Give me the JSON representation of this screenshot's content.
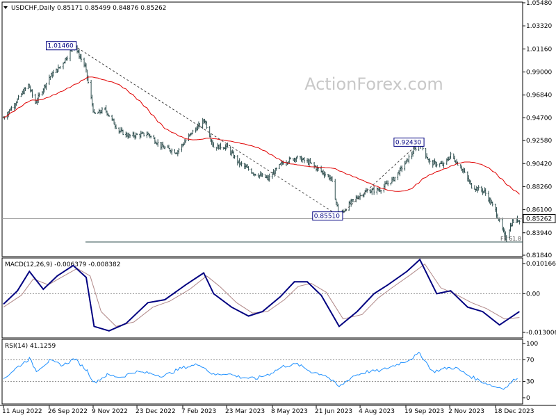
{
  "chart_data": [
    {
      "type": "candlestick",
      "title": "USDCHF,Daily",
      "ohlc": {
        "open": "0.85171",
        "high": "0.85499",
        "low": "0.84876",
        "close": "0.85262"
      },
      "watermark": "ActionForex.com",
      "y_ticks": [
        "1.05480",
        "1.03320",
        "1.01160",
        "0.99000",
        "0.96840",
        "0.94700",
        "0.92580",
        "0.90420",
        "0.88260",
        "0.86100",
        "0.83940",
        "0.81840"
      ],
      "ylim": [
        0.8184,
        1.0548
      ],
      "current_price": "0.85262",
      "annotations": [
        {
          "label": "1.01460",
          "value": 1.0146,
          "date": "2022-10-21"
        },
        {
          "label": "0.85510",
          "value": 0.8551,
          "date": "2023-07-14"
        },
        {
          "label": "0.92430",
          "value": 0.9243,
          "date": "2023-10-03"
        },
        {
          "label": "FE 61.8",
          "value": 0.8308
        }
      ],
      "moving_average": {
        "color": "#e00000"
      },
      "price_anchors": [
        [
          "2022-08-11",
          0.947
        ],
        [
          "2022-08-22",
          0.96
        ],
        [
          "2022-09-05",
          0.978
        ],
        [
          "2022-09-12",
          0.961
        ],
        [
          "2022-09-26",
          0.985
        ],
        [
          "2022-10-07",
          0.995
        ],
        [
          "2022-10-21",
          1.0146
        ],
        [
          "2022-11-01",
          0.995
        ],
        [
          "2022-11-10",
          0.95
        ],
        [
          "2022-11-21",
          0.955
        ],
        [
          "2022-12-05",
          0.935
        ],
        [
          "2022-12-15",
          0.93
        ],
        [
          "2023-01-03",
          0.932
        ],
        [
          "2023-01-17",
          0.92
        ],
        [
          "2023-02-01",
          0.915
        ],
        [
          "2023-02-16",
          0.933
        ],
        [
          "2023-03-01",
          0.945
        ],
        [
          "2023-03-10",
          0.92
        ],
        [
          "2023-03-23",
          0.92
        ],
        [
          "2023-04-04",
          0.905
        ],
        [
          "2023-04-20",
          0.895
        ],
        [
          "2023-05-04",
          0.89
        ],
        [
          "2023-05-18",
          0.905
        ],
        [
          "2023-06-01",
          0.91
        ],
        [
          "2023-06-14",
          0.905
        ],
        [
          "2023-06-26",
          0.897
        ],
        [
          "2023-07-06",
          0.89
        ],
        [
          "2023-07-14",
          0.8551
        ],
        [
          "2023-07-28",
          0.87
        ],
        [
          "2023-08-10",
          0.878
        ],
        [
          "2023-08-24",
          0.88
        ],
        [
          "2023-09-07",
          0.89
        ],
        [
          "2023-09-21",
          0.908
        ],
        [
          "2023-10-03",
          0.9243
        ],
        [
          "2023-10-13",
          0.905
        ],
        [
          "2023-10-27",
          0.903
        ],
        [
          "2023-11-03",
          0.912
        ],
        [
          "2023-11-14",
          0.9
        ],
        [
          "2023-11-24",
          0.883
        ],
        [
          "2023-12-07",
          0.878
        ],
        [
          "2023-12-18",
          0.86
        ],
        [
          "2023-12-28",
          0.8345
        ],
        [
          "2024-01-04",
          0.85
        ],
        [
          "2024-01-11",
          0.852
        ]
      ]
    },
    {
      "type": "line",
      "title": "MACD(12,26,9)",
      "values_text": "-0.006379 -0.008382",
      "y_ticks": [
        "0.010166",
        "0.00",
        "-0.013006"
      ],
      "ylim": [
        -0.013006,
        0.010166
      ],
      "series": [
        {
          "color": "#000080",
          "points": [
            [
              "2022-08-11",
              -0.0035
            ],
            [
              "2022-08-25",
              0.001
            ],
            [
              "2022-09-06",
              0.0075
            ],
            [
              "2022-09-20",
              0.0015
            ],
            [
              "2022-10-04",
              0.006
            ],
            [
              "2022-10-20",
              0.0095
            ],
            [
              "2022-11-02",
              0.0055
            ],
            [
              "2022-11-10",
              -0.011
            ],
            [
              "2022-11-25",
              -0.0125
            ],
            [
              "2022-12-12",
              -0.01
            ],
            [
              "2023-01-03",
              -0.003
            ],
            [
              "2023-01-20",
              -0.002
            ],
            [
              "2023-02-10",
              0.003
            ],
            [
              "2023-02-28",
              0.007
            ],
            [
              "2023-03-10",
              0.0
            ],
            [
              "2023-03-28",
              -0.0045
            ],
            [
              "2023-04-14",
              -0.0075
            ],
            [
              "2023-04-28",
              -0.006
            ],
            [
              "2023-05-16",
              -0.001
            ],
            [
              "2023-05-30",
              0.004
            ],
            [
              "2023-06-12",
              0.004
            ],
            [
              "2023-06-26",
              -0.0005
            ],
            [
              "2023-07-14",
              -0.011
            ],
            [
              "2023-08-01",
              -0.006
            ],
            [
              "2023-08-18",
              0.0
            ],
            [
              "2023-09-01",
              0.003
            ],
            [
              "2023-09-20",
              0.0075
            ],
            [
              "2023-10-03",
              0.0115
            ],
            [
              "2023-10-20",
              0.0
            ],
            [
              "2023-11-03",
              0.001
            ],
            [
              "2023-11-20",
              -0.0045
            ],
            [
              "2023-12-05",
              -0.006
            ],
            [
              "2023-12-22",
              -0.0105
            ],
            [
              "2024-01-11",
              -0.006
            ]
          ]
        },
        {
          "color": "#b08888",
          "points": [
            [
              "2022-08-11",
              -0.0045
            ],
            [
              "2022-08-29",
              -0.0005
            ],
            [
              "2022-09-10",
              0.005
            ],
            [
              "2022-09-25",
              0.003
            ],
            [
              "2022-10-08",
              0.0055
            ],
            [
              "2022-10-24",
              0.0085
            ],
            [
              "2022-11-06",
              0.006
            ],
            [
              "2022-11-17",
              -0.006
            ],
            [
              "2022-12-02",
              -0.011
            ],
            [
              "2022-12-20",
              -0.0095
            ],
            [
              "2023-01-08",
              -0.0045
            ],
            [
              "2023-01-25",
              -0.0025
            ],
            [
              "2023-02-14",
              0.0015
            ],
            [
              "2023-03-03",
              0.006
            ],
            [
              "2023-03-16",
              0.0025
            ],
            [
              "2023-04-02",
              -0.003
            ],
            [
              "2023-04-18",
              -0.0065
            ],
            [
              "2023-05-03",
              -0.006
            ],
            [
              "2023-05-20",
              -0.002
            ],
            [
              "2023-06-03",
              0.0025
            ],
            [
              "2023-06-16",
              0.0035
            ],
            [
              "2023-07-01",
              0.0005
            ],
            [
              "2023-07-18",
              -0.0085
            ],
            [
              "2023-08-06",
              -0.007
            ],
            [
              "2023-08-22",
              -0.0015
            ],
            [
              "2023-09-05",
              0.002
            ],
            [
              "2023-09-24",
              0.0065
            ],
            [
              "2023-10-08",
              0.01
            ],
            [
              "2023-10-24",
              0.002
            ],
            [
              "2023-11-07",
              0.0
            ],
            [
              "2023-11-24",
              -0.003
            ],
            [
              "2023-12-09",
              -0.005
            ],
            [
              "2023-12-27",
              -0.0085
            ],
            [
              "2024-01-11",
              -0.008
            ]
          ]
        }
      ]
    },
    {
      "type": "line",
      "title": "RSI(14)",
      "values_text": "41.1259",
      "y_ticks": [
        "100",
        "70",
        "30",
        "0"
      ],
      "ylim": [
        0,
        100
      ],
      "series": [
        {
          "color": "#1e90ff",
          "points": [
            [
              "2022-08-11",
              35
            ],
            [
              "2022-08-24",
              55
            ],
            [
              "2022-09-06",
              72
            ],
            [
              "2022-09-13",
              50
            ],
            [
              "2022-09-26",
              68
            ],
            [
              "2022-10-10",
              60
            ],
            [
              "2022-10-21",
              72
            ],
            [
              "2022-11-03",
              50
            ],
            [
              "2022-11-10",
              28
            ],
            [
              "2022-11-23",
              42
            ],
            [
              "2022-12-07",
              38
            ],
            [
              "2022-12-21",
              48
            ],
            [
              "2023-01-05",
              45
            ],
            [
              "2023-01-19",
              40
            ],
            [
              "2023-02-06",
              55
            ],
            [
              "2023-02-24",
              62
            ],
            [
              "2023-03-10",
              42
            ],
            [
              "2023-03-23",
              45
            ],
            [
              "2023-04-06",
              38
            ],
            [
              "2023-04-21",
              35
            ],
            [
              "2023-05-05",
              44
            ],
            [
              "2023-05-19",
              58
            ],
            [
              "2023-06-02",
              62
            ],
            [
              "2023-06-16",
              48
            ],
            [
              "2023-06-30",
              42
            ],
            [
              "2023-07-14",
              20
            ],
            [
              "2023-07-28",
              40
            ],
            [
              "2023-08-11",
              48
            ],
            [
              "2023-08-25",
              50
            ],
            [
              "2023-09-08",
              60
            ],
            [
              "2023-09-22",
              70
            ],
            [
              "2023-10-03",
              82
            ],
            [
              "2023-10-16",
              48
            ],
            [
              "2023-10-31",
              55
            ],
            [
              "2023-11-08",
              55
            ],
            [
              "2023-11-20",
              42
            ],
            [
              "2023-12-04",
              30
            ],
            [
              "2023-12-18",
              20
            ],
            [
              "2023-12-28",
              18
            ],
            [
              "2024-01-11",
              42
            ]
          ]
        }
      ]
    }
  ],
  "x_ticks": [
    {
      "label": "11 Aug 2022",
      "date": "2022-08-11"
    },
    {
      "label": "26 Sep 2022",
      "date": "2022-09-26"
    },
    {
      "label": "9 Nov 2022",
      "date": "2022-11-09"
    },
    {
      "label": "23 Dec 2022",
      "date": "2022-12-23"
    },
    {
      "label": "7 Feb 2023",
      "date": "2023-02-07"
    },
    {
      "label": "23 Mar 2023",
      "date": "2023-03-23"
    },
    {
      "label": "8 May 2023",
      "date": "2023-05-08"
    },
    {
      "label": "21 Jun 2023",
      "date": "2023-06-21"
    },
    {
      "label": "4 Aug 2023",
      "date": "2023-08-04"
    },
    {
      "label": "19 Sep 2023",
      "date": "2023-09-19"
    },
    {
      "label": "2 Nov 2023",
      "date": "2023-11-02"
    },
    {
      "label": "18 Dec 2023",
      "date": "2023-12-18"
    }
  ],
  "colors": {
    "frame": "#000000",
    "grid_dashed": "#888888",
    "label_box": "#000080"
  }
}
